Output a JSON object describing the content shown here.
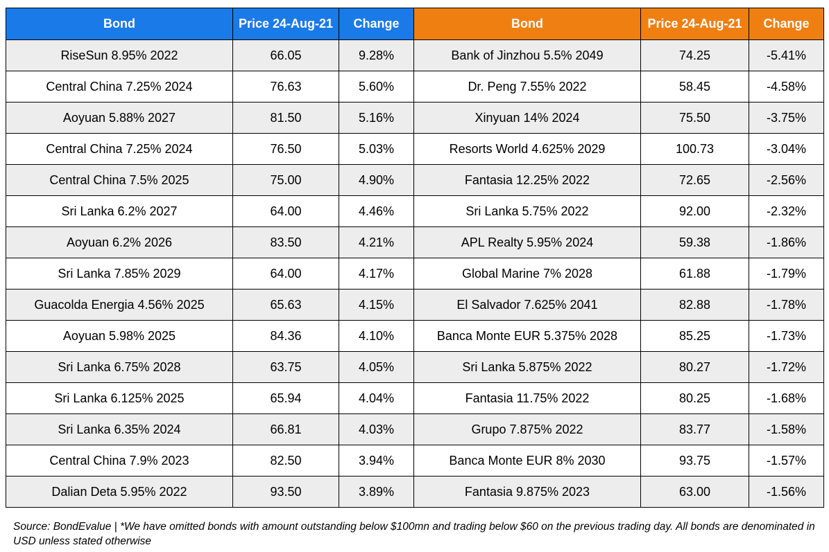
{
  "header": {
    "left_bond": "Bond",
    "left_price": "Price 24-Aug-21",
    "left_change": "Change",
    "right_bond": "Bond",
    "right_price": "Price 24-Aug-21",
    "right_change": "Change"
  },
  "colors": {
    "left_header": "#1a7ae8",
    "right_header": "#f07f12"
  },
  "rows": [
    {
      "lb": "RiseSun 8.95% 2022",
      "lp": "66.05",
      "lc": "9.28%",
      "rb": "Bank of Jinzhou 5.5% 2049",
      "rp": "74.25",
      "rc": "-5.41%"
    },
    {
      "lb": "Central China 7.25% 2024",
      "lp": "76.63",
      "lc": "5.60%",
      "rb": "Dr. Peng 7.55% 2022",
      "rp": "58.45",
      "rc": "-4.58%"
    },
    {
      "lb": "Aoyuan 5.88% 2027",
      "lp": "81.50",
      "lc": "5.16%",
      "rb": "Xinyuan 14% 2024",
      "rp": "75.50",
      "rc": "-3.75%"
    },
    {
      "lb": "Central China 7.25% 2024",
      "lp": "76.50",
      "lc": "5.03%",
      "rb": "Resorts World 4.625% 2029",
      "rp": "100.73",
      "rc": "-3.04%"
    },
    {
      "lb": "Central China 7.5% 2025",
      "lp": "75.00",
      "lc": "4.90%",
      "rb": "Fantasia 12.25% 2022",
      "rp": "72.65",
      "rc": "-2.56%"
    },
    {
      "lb": "Sri Lanka 6.2% 2027",
      "lp": "64.00",
      "lc": "4.46%",
      "rb": "Sri Lanka 5.75% 2022",
      "rp": "92.00",
      "rc": "-2.32%"
    },
    {
      "lb": "Aoyuan 6.2% 2026",
      "lp": "83.50",
      "lc": "4.21%",
      "rb": "APL Realty 5.95% 2024",
      "rp": "59.38",
      "rc": "-1.86%"
    },
    {
      "lb": "Sri Lanka 7.85% 2029",
      "lp": "64.00",
      "lc": "4.17%",
      "rb": "Global Marine 7% 2028",
      "rp": "61.88",
      "rc": "-1.79%"
    },
    {
      "lb": "Guacolda Energia 4.56% 2025",
      "lp": "65.63",
      "lc": "4.15%",
      "rb": "El Salvador 7.625% 2041",
      "rp": "82.88",
      "rc": "-1.78%"
    },
    {
      "lb": "Aoyuan 5.98% 2025",
      "lp": "84.36",
      "lc": "4.10%",
      "rb": "Banca Monte EUR 5.375% 2028",
      "rp": "85.25",
      "rc": "-1.73%"
    },
    {
      "lb": "Sri Lanka 6.75% 2028",
      "lp": "63.75",
      "lc": "4.05%",
      "rb": "Sri Lanka 5.875% 2022",
      "rp": "80.27",
      "rc": "-1.72%"
    },
    {
      "lb": "Sri Lanka 6.125% 2025",
      "lp": "65.94",
      "lc": "4.04%",
      "rb": "Fantasia 11.75% 2022",
      "rp": "80.25",
      "rc": "-1.68%"
    },
    {
      "lb": "Sri Lanka 6.35% 2024",
      "lp": "66.81",
      "lc": "4.03%",
      "rb": "Grupo 7.875% 2022",
      "rp": "83.77",
      "rc": "-1.58%"
    },
    {
      "lb": "Central China 7.9% 2023",
      "lp": "82.50",
      "lc": "3.94%",
      "rb": "Banca Monte EUR 8% 2030",
      "rp": "93.75",
      "rc": "-1.57%"
    },
    {
      "lb": "Dalian Deta 5.95% 2022",
      "lp": "93.50",
      "lc": "3.89%",
      "rb": "Fantasia 9.875% 2023",
      "rp": "63.00",
      "rc": "-1.56%"
    }
  ],
  "footer": {
    "source": "Source: BondEvalue | *We have omitted bonds with amount outstanding below $100mn and trading below $60 on the previous trading day. All bonds are denominated in USD unless stated otherwise"
  }
}
